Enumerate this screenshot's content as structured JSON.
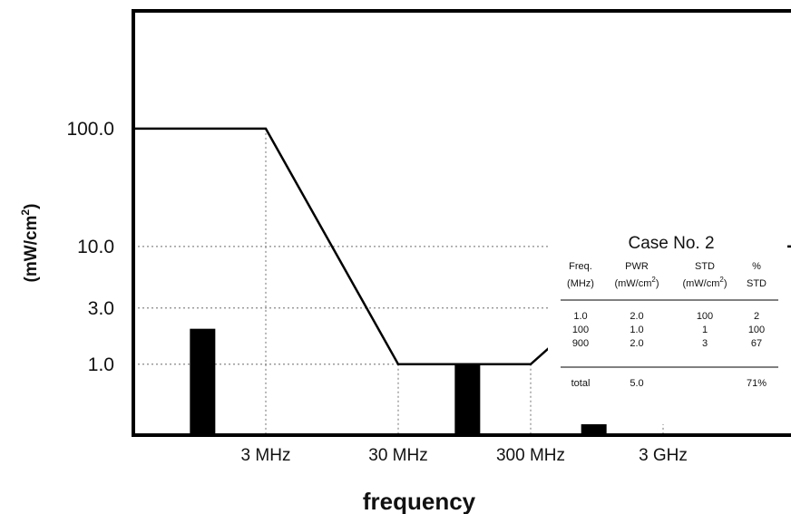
{
  "chart_data": {
    "type": "bar",
    "ylabel": "(mW/cm",
    "ylabel_sup": "2",
    "ylabel_end": ")",
    "xlabel": "frequency",
    "y_scale": "log",
    "ylim": [
      0.25,
      1000
    ],
    "xlim_mhz": [
      0.3,
      30000
    ],
    "y_ticks": [
      {
        "value": 100,
        "label": "100.0"
      },
      {
        "value": 10,
        "label": "10.0"
      },
      {
        "value": 3,
        "label": "3.0"
      },
      {
        "value": 1,
        "label": "1.0"
      }
    ],
    "x_ticks": [
      {
        "value": 3,
        "label": "3 MHz"
      },
      {
        "value": 30,
        "label": "30 MHz"
      },
      {
        "value": 300,
        "label": "300 MHz"
      },
      {
        "value": 3000,
        "label": "3 GHz"
      }
    ],
    "limit_line": {
      "x_mhz": [
        0.3,
        3,
        30,
        300,
        3000,
        30000
      ],
      "y": [
        100,
        100,
        1,
        1,
        10,
        10
      ]
    },
    "bars": [
      {
        "x_mhz": 1.0,
        "value": 2.0
      },
      {
        "x_mhz": 100,
        "value": 1.0
      },
      {
        "x_mhz": 900,
        "value": 2.0
      }
    ],
    "table": {
      "title": "Case No. 2",
      "headers": [
        [
          "Freq.",
          "(MHz)"
        ],
        [
          "PWR",
          "(mW/cm",
          "2",
          ")"
        ],
        [
          "STD",
          "(mW/cm",
          "2",
          ")"
        ],
        [
          "%",
          "STD"
        ]
      ],
      "rows": [
        [
          "1.0",
          "2.0",
          "100",
          "2"
        ],
        [
          "100",
          "1.0",
          "1",
          "100"
        ],
        [
          "900",
          "2.0",
          "3",
          "67"
        ]
      ],
      "total": [
        "total",
        "5.0",
        "",
        "71%"
      ]
    },
    "colors": {
      "bar": "#000000",
      "line": "#000000",
      "grid": "#888888"
    }
  }
}
